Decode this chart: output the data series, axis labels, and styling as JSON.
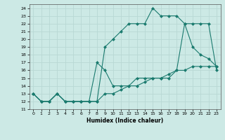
{
  "xlabel": "Humidex (Indice chaleur)",
  "bg_color": "#cce9e5",
  "grid_color": "#b8d8d4",
  "line_color": "#1a7a6e",
  "xlim": [
    -0.5,
    23.5
  ],
  "ylim": [
    11,
    24.5
  ],
  "xticks": [
    0,
    1,
    2,
    3,
    4,
    5,
    6,
    7,
    8,
    9,
    10,
    11,
    12,
    13,
    14,
    15,
    16,
    17,
    18,
    19,
    20,
    21,
    22,
    23
  ],
  "yticks": [
    11,
    12,
    13,
    14,
    15,
    16,
    17,
    18,
    19,
    20,
    21,
    22,
    23,
    24
  ],
  "line1_x": [
    0,
    1,
    2,
    3,
    4,
    5,
    6,
    7,
    8,
    9,
    10,
    11,
    12,
    13,
    14,
    15,
    16,
    17,
    18,
    19,
    20,
    21,
    22,
    23
  ],
  "line1_y": [
    13,
    12,
    12,
    13,
    12,
    12,
    12,
    12,
    12,
    19,
    20,
    21,
    22,
    22,
    22,
    24,
    23,
    23,
    23,
    22,
    19,
    18,
    17.5,
    16.5
  ],
  "line2_x": [
    0,
    1,
    2,
    3,
    4,
    5,
    6,
    7,
    8,
    9,
    10,
    11,
    12,
    13,
    14,
    15,
    16,
    17,
    18,
    19,
    20,
    21,
    22,
    23
  ],
  "line2_y": [
    13,
    12,
    12,
    13,
    12,
    12,
    12,
    12,
    17,
    16,
    14,
    14,
    14,
    15,
    15,
    15,
    15,
    15,
    16,
    22,
    22,
    22,
    22,
    16
  ],
  "line3_x": [
    0,
    1,
    2,
    3,
    4,
    5,
    6,
    7,
    8,
    9,
    10,
    11,
    12,
    13,
    14,
    15,
    16,
    17,
    18,
    19,
    20,
    21,
    22,
    23
  ],
  "line3_y": [
    13,
    12,
    12,
    13,
    12,
    12,
    12,
    12,
    12,
    13,
    13,
    13.5,
    14,
    14,
    14.5,
    15,
    15,
    15.5,
    16,
    16,
    16.5,
    16.5,
    16.5,
    16.5
  ]
}
